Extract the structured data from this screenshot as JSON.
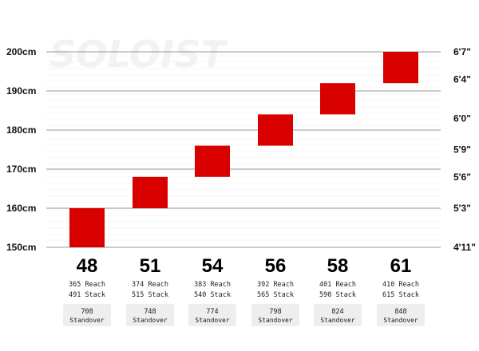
{
  "chart_data": {
    "type": "range-bar",
    "watermark": "SOLOIST",
    "y_left": {
      "unit": "cm",
      "ylim": [
        150,
        200
      ],
      "ticks": [
        {
          "value": 200,
          "label": "200cm"
        },
        {
          "value": 190,
          "label": "190cm"
        },
        {
          "value": 180,
          "label": "180cm"
        },
        {
          "value": 170,
          "label": "170cm"
        },
        {
          "value": 160,
          "label": "160cm"
        },
        {
          "value": 150,
          "label": "150cm"
        }
      ]
    },
    "y_right": {
      "ticks": [
        {
          "value": 200,
          "label": "6'7\""
        },
        {
          "value": 193,
          "label": "6'4\""
        },
        {
          "value": 183,
          "label": "6'0\""
        },
        {
          "value": 175,
          "label": "5'9\""
        },
        {
          "value": 168,
          "label": "5'6\""
        },
        {
          "value": 160,
          "label": "5'3\""
        },
        {
          "value": 150,
          "label": "4'11\""
        }
      ]
    },
    "bar_color": "#d90000",
    "sizes": [
      {
        "size": "48",
        "range": [
          150,
          160
        ],
        "reach": "365 Reach",
        "stack": "491 Stack",
        "standover": "708",
        "standover_label": "Standover"
      },
      {
        "size": "51",
        "range": [
          160,
          168
        ],
        "reach": "374 Reach",
        "stack": "515 Stack",
        "standover": "748",
        "standover_label": "Standover"
      },
      {
        "size": "54",
        "range": [
          168,
          176
        ],
        "reach": "383 Reach",
        "stack": "540 Stack",
        "standover": "774",
        "standover_label": "Standover"
      },
      {
        "size": "56",
        "range": [
          176,
          184
        ],
        "reach": "392 Reach",
        "stack": "565 Stack",
        "standover": "798",
        "standover_label": "Standover"
      },
      {
        "size": "58",
        "range": [
          184,
          192
        ],
        "reach": "401 Reach",
        "stack": "590 Stack",
        "standover": "824",
        "standover_label": "Standover"
      },
      {
        "size": "61",
        "range": [
          192,
          200
        ],
        "reach": "410 Reach",
        "stack": "615 Stack",
        "standover": "848",
        "standover_label": "Standover"
      }
    ]
  }
}
